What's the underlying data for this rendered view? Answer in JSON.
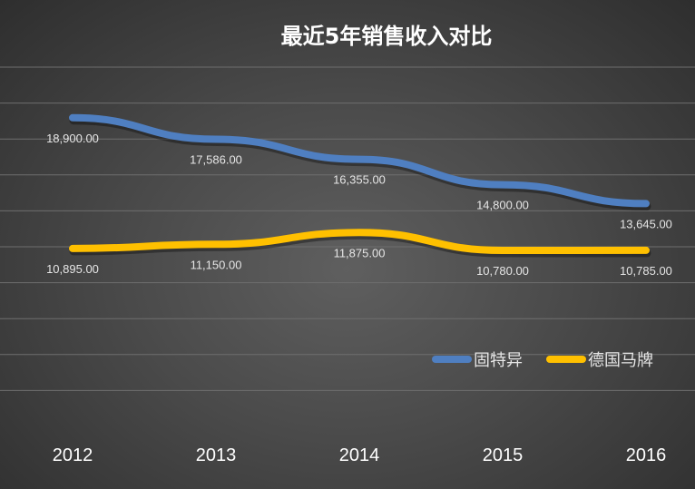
{
  "chart_data": {
    "type": "line",
    "title": "最近5年销售收入对比",
    "categories": [
      "2012",
      "2013",
      "2014",
      "2015",
      "2016"
    ],
    "series": [
      {
        "name": "固特异",
        "color": "#4f7fc1",
        "values": [
          18900,
          17586,
          16355,
          14800,
          13645
        ],
        "labels": [
          "18,900.00",
          "17,586.00",
          "16,355.00",
          "14,800.00",
          "13,645.00"
        ]
      },
      {
        "name": "德国马牌",
        "color": "#ffc000",
        "values": [
          10895,
          11150,
          11875,
          10780,
          10785
        ],
        "labels": [
          "10,895.00",
          "11,150.00",
          "11,875.00",
          "10,780.00",
          "10,785.00"
        ]
      }
    ],
    "ylim": [
      0,
      22000
    ],
    "xlabel": "",
    "ylabel": "",
    "grid": true,
    "legend_position": "right"
  }
}
